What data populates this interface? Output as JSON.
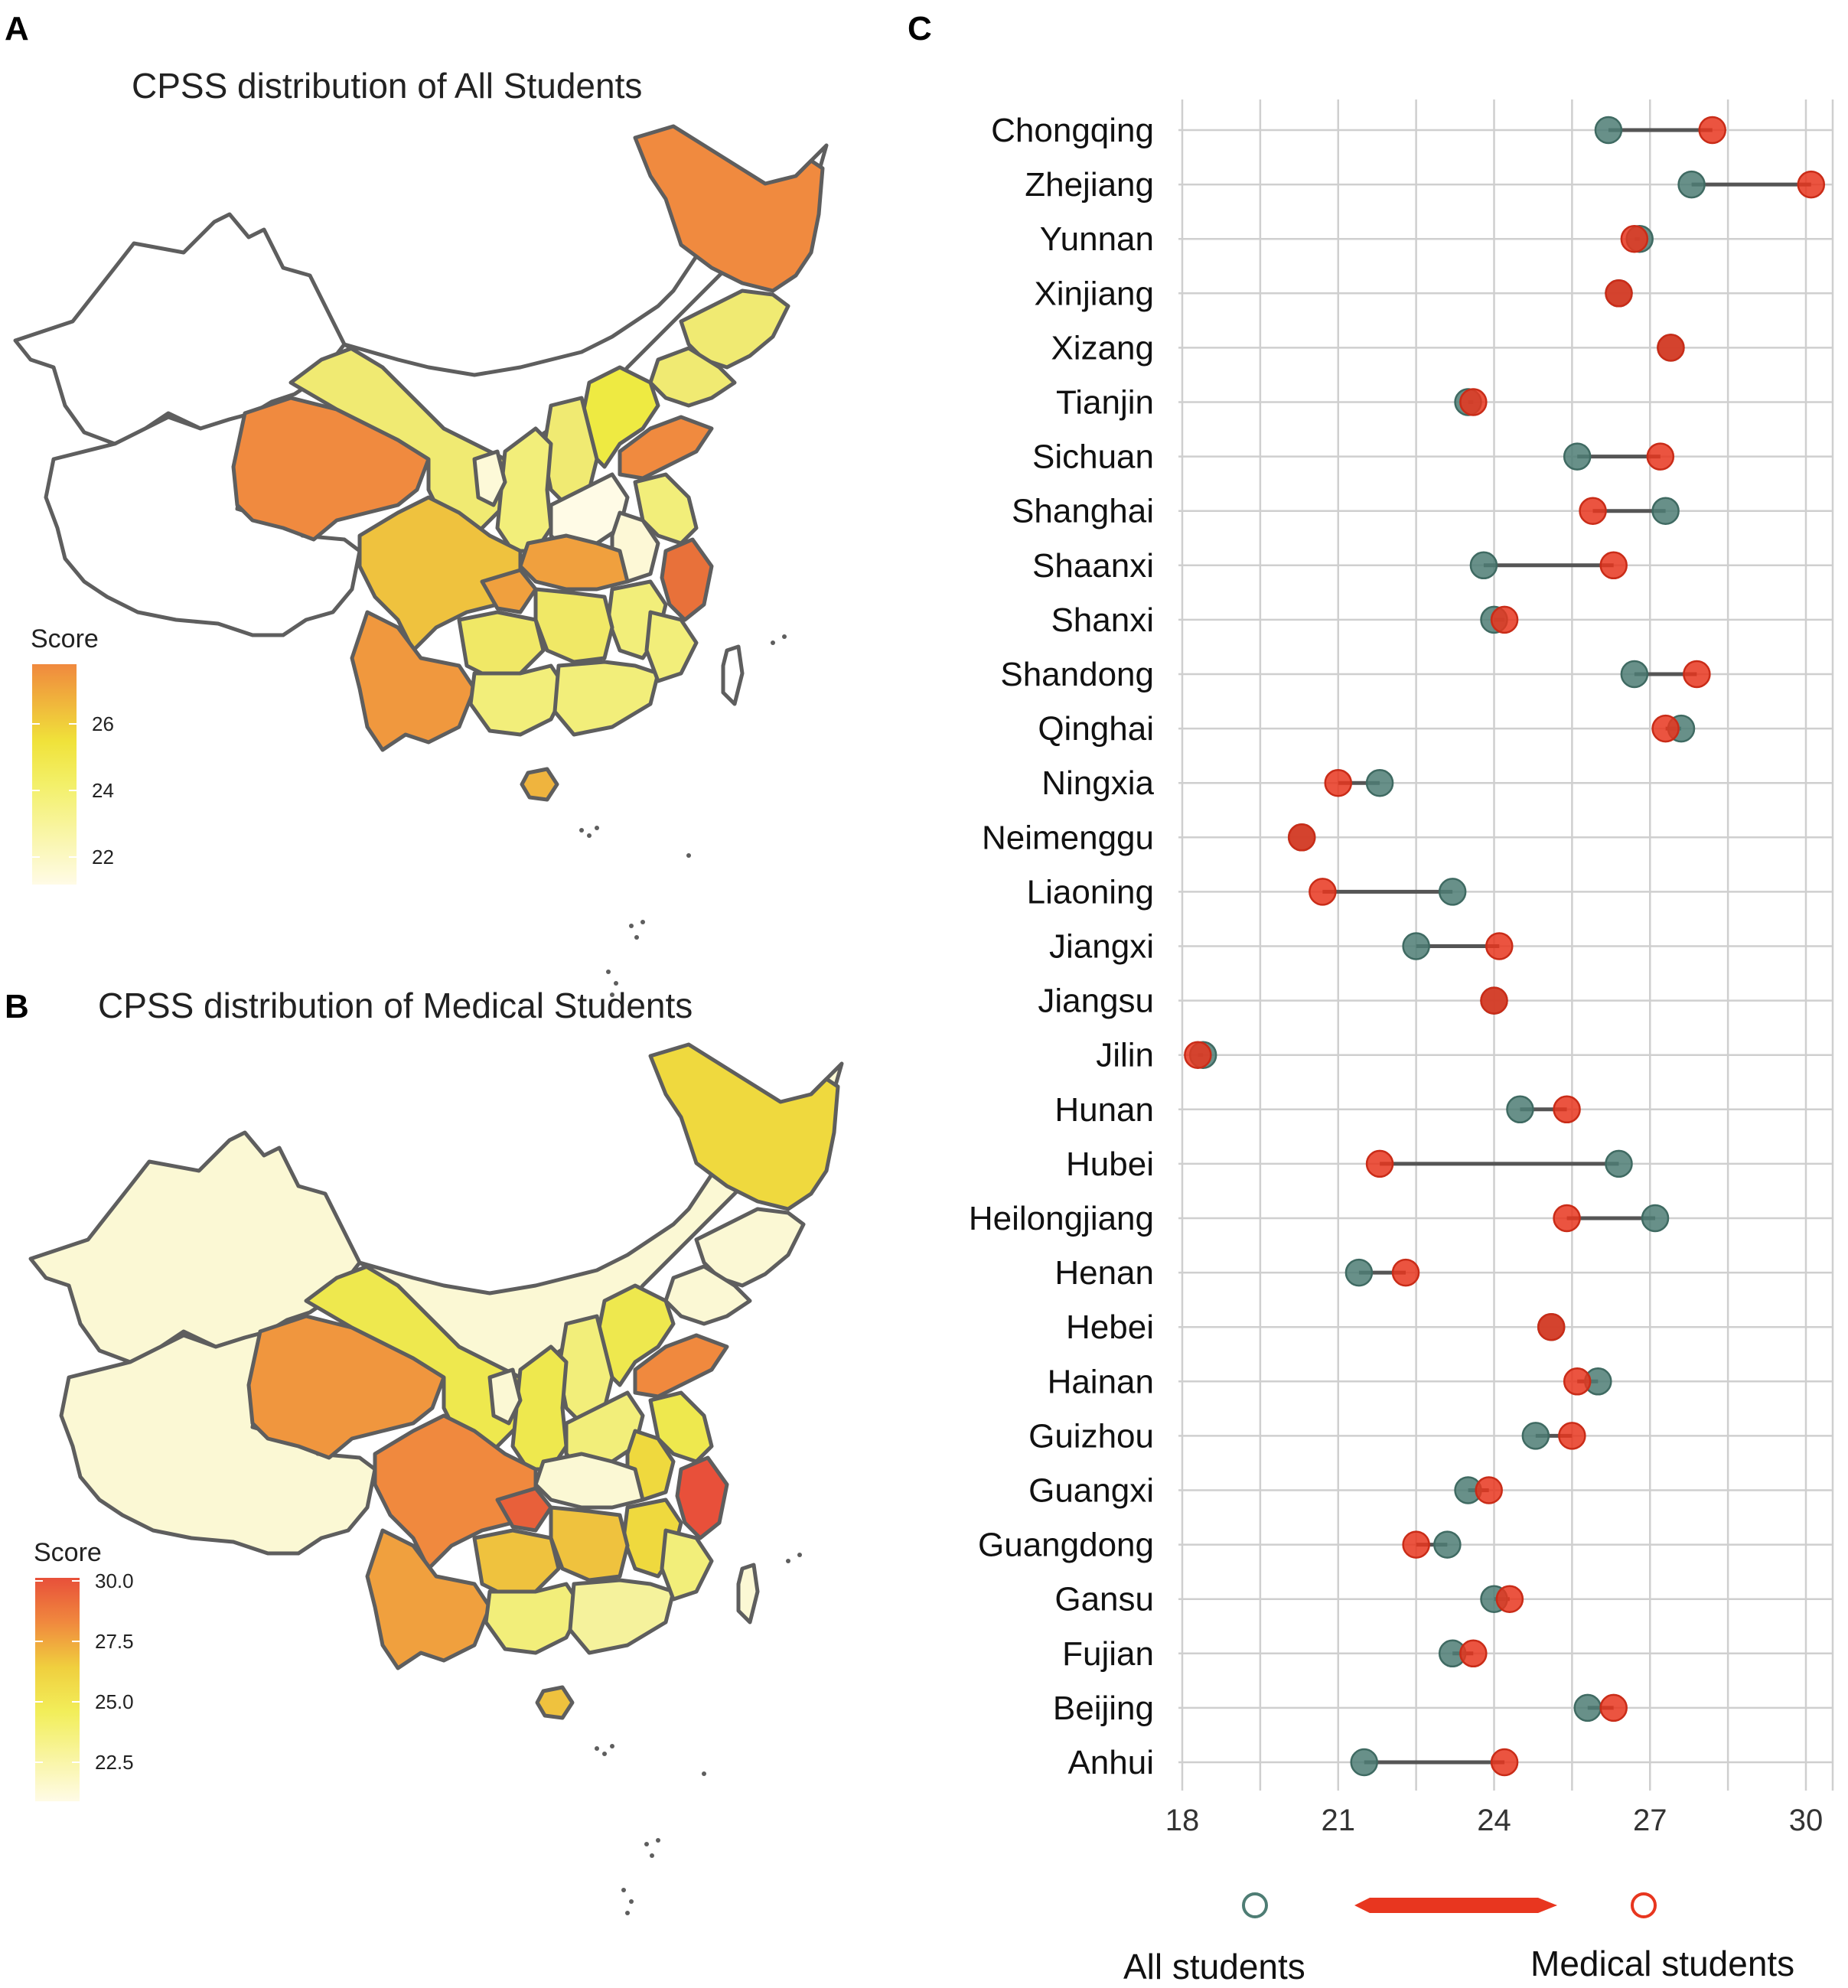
{
  "panels": {
    "a": {
      "letter": "A",
      "title": "CPSS distribution of All Students"
    },
    "b": {
      "letter": "B",
      "title": "CPSS distribution of Medical  Students"
    },
    "c": {
      "letter": "C"
    }
  },
  "legend_a": {
    "title": "Score",
    "ticks": [
      "26",
      "24",
      "22"
    ]
  },
  "legend_b": {
    "title": "Score",
    "ticks": [
      "30.0",
      "27.5",
      "25.0",
      "22.5"
    ]
  },
  "colors": {
    "all": "#4e7d74",
    "medical": "#e8361f",
    "low": "#fffbe6",
    "mid": "#eeea42",
    "high": "#f0893e",
    "max": "#e8503a"
  },
  "chart_data": [
    {
      "type": "choropleth",
      "title": "CPSS distribution of All Students",
      "legend_title": "Score",
      "legend_ticks": [
        22,
        24,
        26
      ]
    },
    {
      "type": "choropleth",
      "title": "CPSS distribution of Medical  Students",
      "legend_title": "Score",
      "legend_ticks": [
        22.5,
        25.0,
        27.5,
        30.0
      ]
    },
    {
      "type": "dumbbell",
      "xlim": [
        18,
        30.5
      ],
      "xticks": [
        "18",
        "21",
        "24",
        "27",
        "30"
      ],
      "legend": {
        "all": "All students",
        "medical": "Medical students"
      },
      "provinces": [
        {
          "name": "Chongqing",
          "all": 26.2,
          "medical": 28.2
        },
        {
          "name": "Zhejiang",
          "all": 27.8,
          "medical": 30.1
        },
        {
          "name": "Yunnan",
          "all": 26.8,
          "medical": 26.7
        },
        {
          "name": "Xinjiang",
          "all": 26.4,
          "medical": 26.4
        },
        {
          "name": "Xizang",
          "all": 27.4,
          "medical": 27.4
        },
        {
          "name": "Tianjin",
          "all": 23.5,
          "medical": 23.6
        },
        {
          "name": "Sichuan",
          "all": 25.6,
          "medical": 27.2
        },
        {
          "name": "Shanghai",
          "all": 27.3,
          "medical": 25.9
        },
        {
          "name": "Shaanxi",
          "all": 23.8,
          "medical": 26.3
        },
        {
          "name": "Shanxi",
          "all": 24.0,
          "medical": 24.2
        },
        {
          "name": "Shandong",
          "all": 26.7,
          "medical": 27.9
        },
        {
          "name": "Qinghai",
          "all": 27.6,
          "medical": 27.3
        },
        {
          "name": "Ningxia",
          "all": 21.8,
          "medical": 21.0
        },
        {
          "name": "Neimenggu",
          "all": 20.3,
          "medical": 20.3
        },
        {
          "name": "Liaoning",
          "all": 23.2,
          "medical": 20.7
        },
        {
          "name": "Jiangxi",
          "all": 22.5,
          "medical": 24.1
        },
        {
          "name": "Jiangsu",
          "all": 24.0,
          "medical": 24.0
        },
        {
          "name": "Jilin",
          "all": 18.4,
          "medical": 18.3
        },
        {
          "name": "Hunan",
          "all": 24.5,
          "medical": 25.4
        },
        {
          "name": "Hubei",
          "all": 26.4,
          "medical": 21.8
        },
        {
          "name": "Heilongjiang",
          "all": 27.1,
          "medical": 25.4
        },
        {
          "name": "Henan",
          "all": 21.4,
          "medical": 22.3
        },
        {
          "name": "Hebei",
          "all": 25.1,
          "medical": 25.1
        },
        {
          "name": "Hainan",
          "all": 26.0,
          "medical": 25.6
        },
        {
          "name": "Guizhou",
          "all": 24.8,
          "medical": 25.5
        },
        {
          "name": "Guangxi",
          "all": 23.5,
          "medical": 23.9
        },
        {
          "name": "Guangdong",
          "all": 23.1,
          "medical": 22.5
        },
        {
          "name": "Gansu",
          "all": 24.0,
          "medical": 24.3
        },
        {
          "name": "Fujian",
          "all": 23.2,
          "medical": 23.6
        },
        {
          "name": "Beijing",
          "all": 25.8,
          "medical": 26.3
        },
        {
          "name": "Anhui",
          "all": 21.5,
          "medical": 24.2
        }
      ]
    }
  ]
}
